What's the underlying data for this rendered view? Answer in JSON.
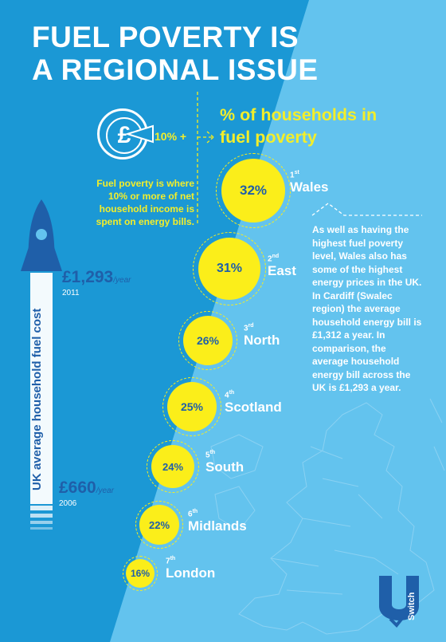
{
  "title": {
    "line1": "FUEL POVERTY IS",
    "line2": "A REGIONAL ISSUE"
  },
  "heading": {
    "line1": "% of households in",
    "line2": "fuel poverty"
  },
  "definition": {
    "icon": "pound-coin-icon",
    "threshold_label": "10% +",
    "text": "Fuel poverty is where 10% or more of net household income is spent on energy bills."
  },
  "cost": {
    "axis_label": "UK average household fuel cost",
    "high": {
      "amount": "£1,293",
      "per": "/year",
      "year": "2011"
    },
    "low": {
      "amount": "£660",
      "per": "/year",
      "year": "2006"
    }
  },
  "regions": [
    {
      "rank_num": "1",
      "rank_suffix": "st",
      "name": "Wales",
      "percent": "32%"
    },
    {
      "rank_num": "2",
      "rank_suffix": "nd",
      "name": "East",
      "percent": "31%"
    },
    {
      "rank_num": "3",
      "rank_suffix": "rd",
      "name": "North",
      "percent": "26%"
    },
    {
      "rank_num": "4",
      "rank_suffix": "th",
      "name": "Scotland",
      "percent": "25%"
    },
    {
      "rank_num": "5",
      "rank_suffix": "th",
      "name": "South",
      "percent": "24%"
    },
    {
      "rank_num": "6",
      "rank_suffix": "th",
      "name": "Midlands",
      "percent": "22%"
    },
    {
      "rank_num": "7",
      "rank_suffix": "th",
      "name": "London",
      "percent": "16%"
    }
  ],
  "note": "As well as having the highest fuel poverty level, Wales also has some of the highest energy prices in the UK. In Cardiff (Swalec region) the average household energy bill is £1,312 a year. In comparison, the average household energy bill across the UK is £1,293 a year.",
  "logo": {
    "icon": "uswitch-logo-icon",
    "text": "Switch"
  },
  "colors": {
    "dark_blue": "#1b98d5",
    "light_blue": "#63c3ee",
    "yellow": "#fbee1a",
    "navy": "#1f5fa9"
  }
}
